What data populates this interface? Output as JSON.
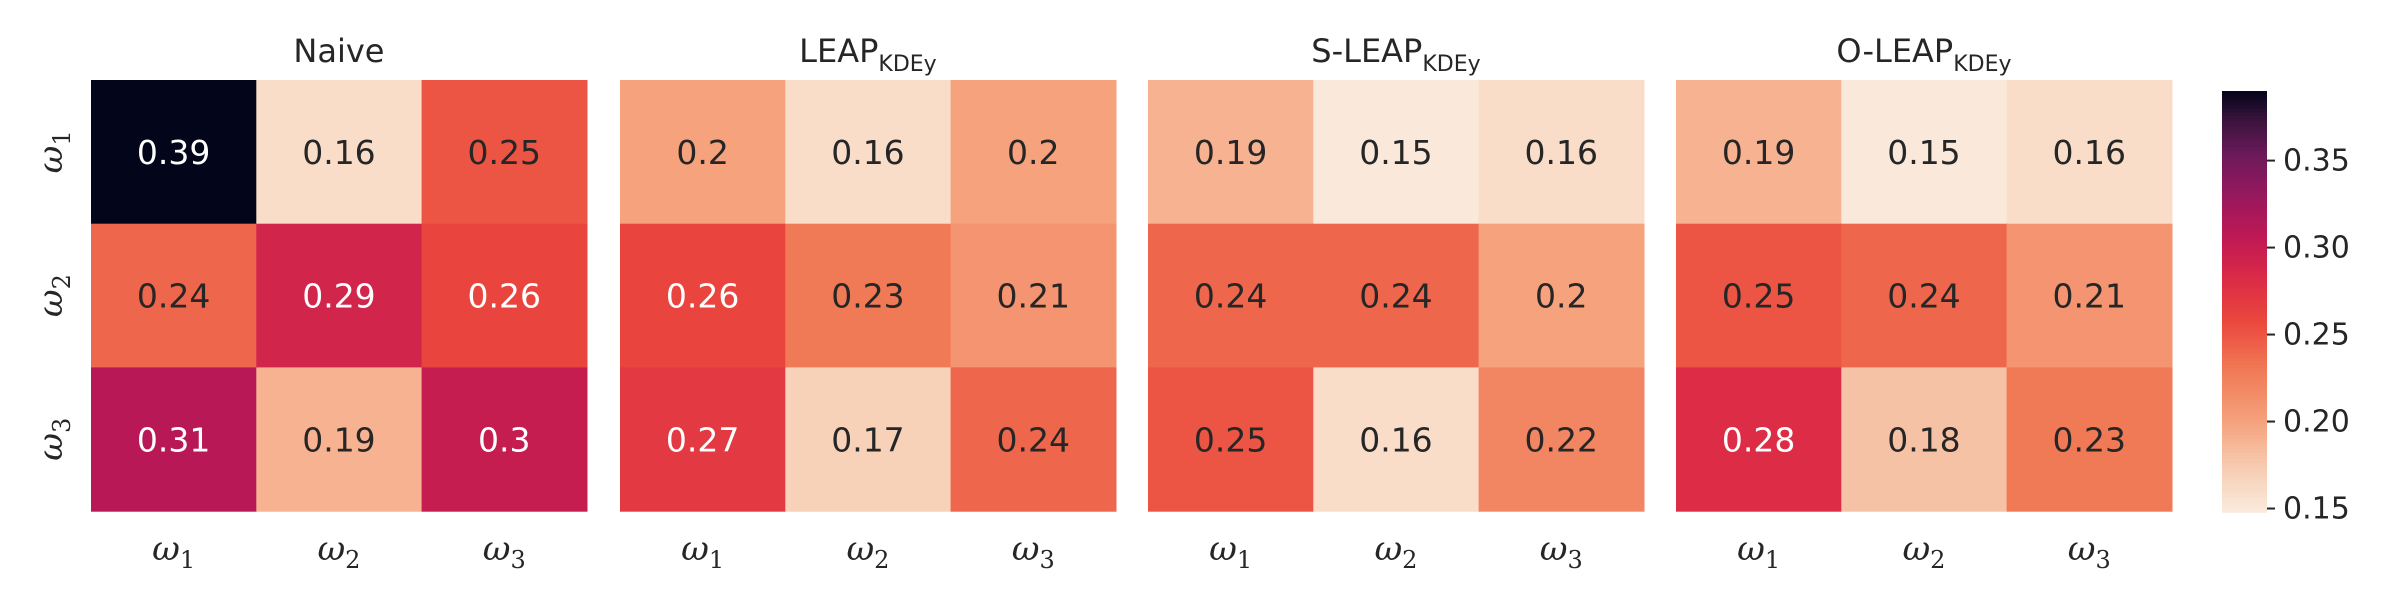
{
  "chart_data": {
    "type": "heatmap",
    "row_labels": [
      {
        "base": "ω",
        "sub": "1"
      },
      {
        "base": "ω",
        "sub": "2"
      },
      {
        "base": "ω",
        "sub": "3"
      }
    ],
    "col_labels": [
      {
        "base": "ω",
        "sub": "1"
      },
      {
        "base": "ω",
        "sub": "2"
      },
      {
        "base": "ω",
        "sub": "3"
      }
    ],
    "panels": [
      {
        "title_main": "Naive",
        "title_sub": "",
        "values": [
          [
            0.39,
            0.16,
            0.25
          ],
          [
            0.24,
            0.29,
            0.26
          ],
          [
            0.31,
            0.19,
            0.3
          ]
        ],
        "labels": [
          [
            "0.39",
            "0.16",
            "0.25"
          ],
          [
            "0.24",
            "0.29",
            "0.26"
          ],
          [
            "0.31",
            "0.19",
            "0.3"
          ]
        ]
      },
      {
        "title_main": "LEAP",
        "title_sub": "KDEy",
        "values": [
          [
            0.2,
            0.16,
            0.2
          ],
          [
            0.26,
            0.23,
            0.21
          ],
          [
            0.27,
            0.17,
            0.24
          ]
        ],
        "labels": [
          [
            "0.2",
            "0.16",
            "0.2"
          ],
          [
            "0.26",
            "0.23",
            "0.21"
          ],
          [
            "0.27",
            "0.17",
            "0.24"
          ]
        ]
      },
      {
        "title_main": "S-LEAP",
        "title_sub": "KDEy",
        "values": [
          [
            0.19,
            0.15,
            0.16
          ],
          [
            0.24,
            0.24,
            0.2
          ],
          [
            0.25,
            0.16,
            0.22
          ]
        ],
        "labels": [
          [
            "0.19",
            "0.15",
            "0.16"
          ],
          [
            "0.24",
            "0.24",
            "0.2"
          ],
          [
            "0.25",
            "0.16",
            "0.22"
          ]
        ]
      },
      {
        "title_main": "O-LEAP",
        "title_sub": "KDEy",
        "values": [
          [
            0.19,
            0.15,
            0.16
          ],
          [
            0.25,
            0.24,
            0.21
          ],
          [
            0.28,
            0.18,
            0.23
          ]
        ],
        "labels": [
          [
            "0.19",
            "0.15",
            "0.16"
          ],
          [
            "0.25",
            "0.24",
            "0.21"
          ],
          [
            "0.28",
            "0.18",
            "0.23"
          ]
        ]
      }
    ],
    "colormap": "rocket_r",
    "colorbar": {
      "vmin": 0.148,
      "vmax": 0.39,
      "ticks": [
        0.15,
        0.2,
        0.25,
        0.3,
        0.35
      ],
      "tick_labels": [
        "0.15",
        "0.20",
        "0.25",
        "0.30",
        "0.35"
      ]
    },
    "colors": {
      "text_dark": "#262626",
      "text_light": "#ffffff"
    }
  }
}
